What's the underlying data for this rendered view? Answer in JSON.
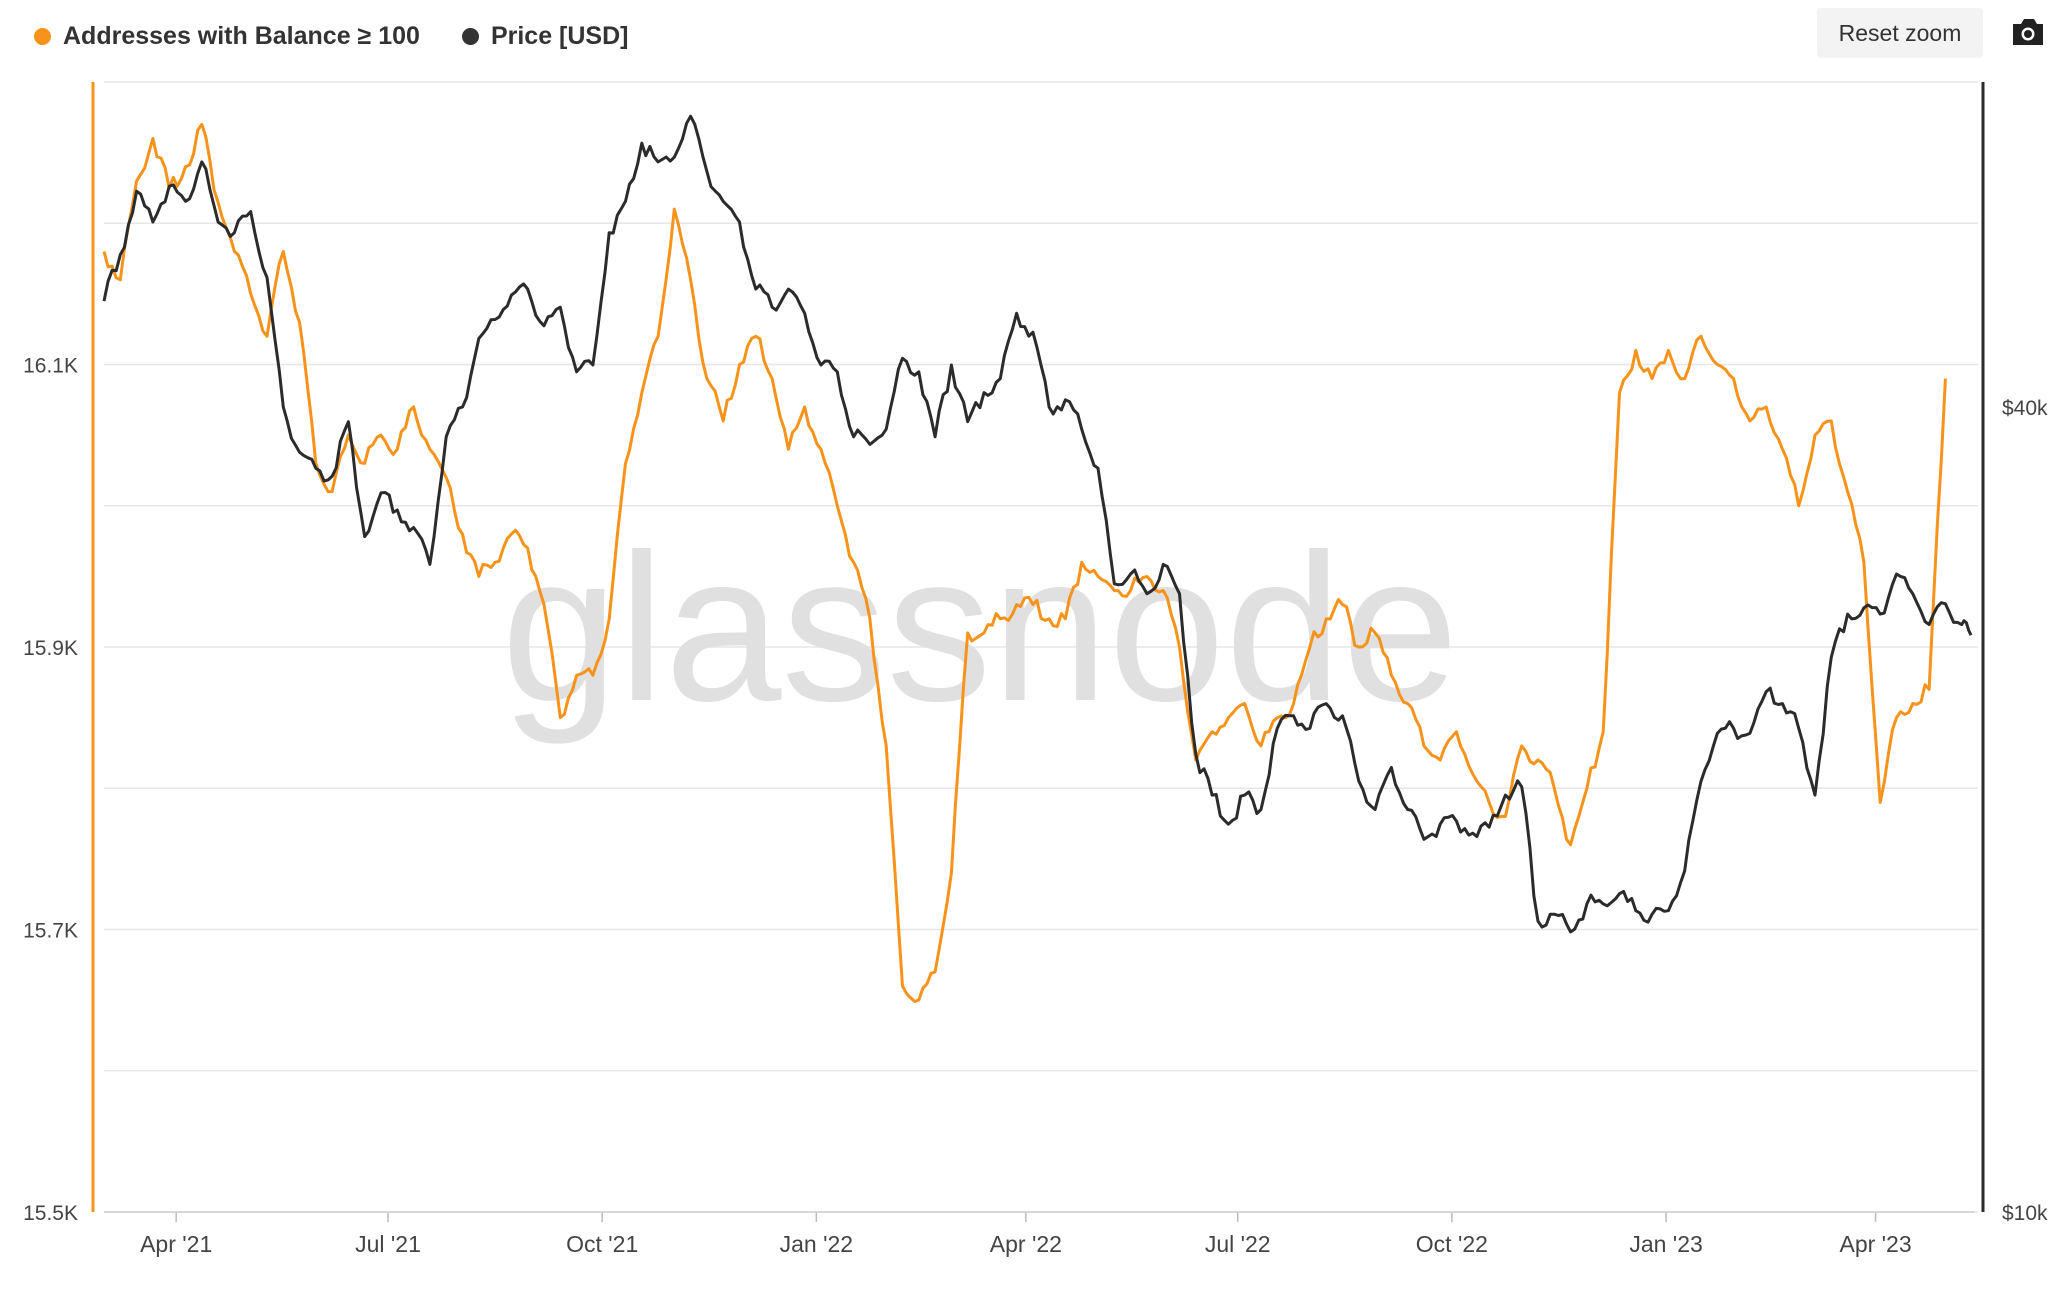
{
  "legend": {
    "series1": "Addresses with Balance ≥ 100",
    "series2": "Price [USD]"
  },
  "toolbar": {
    "reset_zoom": "Reset zoom",
    "camera_icon": "camera-icon"
  },
  "watermark": "glassnode",
  "colors": {
    "addresses": "#f7931a",
    "price": "#2b2b2b",
    "grid": "#e6e6e6",
    "axis_text": "#444444"
  },
  "chart_data": {
    "type": "line",
    "x_ticks": [
      "Apr '21",
      "Jul '21",
      "Oct '21",
      "Jan '22",
      "Apr '22",
      "Jul '22",
      "Oct '22",
      "Jan '23",
      "Apr '23"
    ],
    "y_left_ticks": [
      "16.1K",
      "15.9K",
      "15.7K",
      "15.5K"
    ],
    "y_right_ticks": [
      "$40k",
      "$10k"
    ],
    "y_left_range": [
      15500,
      16300
    ],
    "y_right_scale": "log",
    "y_right_range": [
      10000,
      70000
    ],
    "x_range": [
      "2021-03-01",
      "2023-05-15"
    ],
    "series": [
      {
        "name": "Addresses with Balance ≥ 100",
        "axis": "left",
        "points": [
          [
            "2021-03-01",
            16180
          ],
          [
            "2021-03-08",
            16160
          ],
          [
            "2021-03-15",
            16230
          ],
          [
            "2021-03-22",
            16260
          ],
          [
            "2021-03-29",
            16225
          ],
          [
            "2021-04-05",
            16240
          ],
          [
            "2021-04-12",
            16270
          ],
          [
            "2021-04-19",
            16215
          ],
          [
            "2021-04-26",
            16180
          ],
          [
            "2021-05-03",
            16150
          ],
          [
            "2021-05-10",
            16120
          ],
          [
            "2021-05-17",
            16180
          ],
          [
            "2021-05-24",
            16130
          ],
          [
            "2021-05-31",
            16030
          ],
          [
            "2021-06-07",
            16010
          ],
          [
            "2021-06-14",
            16050
          ],
          [
            "2021-06-21",
            16030
          ],
          [
            "2021-06-28",
            16050
          ],
          [
            "2021-07-05",
            16040
          ],
          [
            "2021-07-12",
            16070
          ],
          [
            "2021-07-19",
            16040
          ],
          [
            "2021-07-26",
            16020
          ],
          [
            "2021-08-02",
            15980
          ],
          [
            "2021-08-09",
            15950
          ],
          [
            "2021-08-16",
            15960
          ],
          [
            "2021-08-23",
            15980
          ],
          [
            "2021-08-30",
            15970
          ],
          [
            "2021-09-06",
            15930
          ],
          [
            "2021-09-13",
            15850
          ],
          [
            "2021-09-20",
            15880
          ],
          [
            "2021-09-27",
            15880
          ],
          [
            "2021-10-04",
            15920
          ],
          [
            "2021-10-11",
            16030
          ],
          [
            "2021-10-18",
            16080
          ],
          [
            "2021-10-25",
            16120
          ],
          [
            "2021-11-01",
            16210
          ],
          [
            "2021-11-08",
            16160
          ],
          [
            "2021-11-15",
            16090
          ],
          [
            "2021-11-22",
            16060
          ],
          [
            "2021-11-29",
            16100
          ],
          [
            "2021-12-06",
            16120
          ],
          [
            "2021-12-13",
            16090
          ],
          [
            "2021-12-20",
            16040
          ],
          [
            "2021-12-27",
            16070
          ],
          [
            "2022-01-03",
            16040
          ],
          [
            "2022-01-10",
            16000
          ],
          [
            "2022-01-17",
            15960
          ],
          [
            "2022-01-24",
            15920
          ],
          [
            "2022-01-31",
            15830
          ],
          [
            "2022-02-07",
            15660
          ],
          [
            "2022-02-14",
            15650
          ],
          [
            "2022-02-21",
            15670
          ],
          [
            "2022-02-28",
            15740
          ],
          [
            "2022-03-07",
            15910
          ],
          [
            "2022-03-14",
            15910
          ],
          [
            "2022-03-21",
            15920
          ],
          [
            "2022-03-28",
            15930
          ],
          [
            "2022-04-04",
            15930
          ],
          [
            "2022-04-11",
            15920
          ],
          [
            "2022-04-18",
            15920
          ],
          [
            "2022-04-25",
            15960
          ],
          [
            "2022-05-02",
            15950
          ],
          [
            "2022-05-09",
            15940
          ],
          [
            "2022-05-16",
            15940
          ],
          [
            "2022-05-23",
            15950
          ],
          [
            "2022-05-30",
            15940
          ],
          [
            "2022-06-06",
            15900
          ],
          [
            "2022-06-13",
            15820
          ],
          [
            "2022-06-20",
            15840
          ],
          [
            "2022-06-27",
            15850
          ],
          [
            "2022-07-04",
            15860
          ],
          [
            "2022-07-11",
            15830
          ],
          [
            "2022-07-18",
            15850
          ],
          [
            "2022-07-25",
            15860
          ],
          [
            "2022-08-01",
            15900
          ],
          [
            "2022-08-08",
            15920
          ],
          [
            "2022-08-15",
            15930
          ],
          [
            "2022-08-22",
            15900
          ],
          [
            "2022-08-29",
            15910
          ],
          [
            "2022-09-05",
            15880
          ],
          [
            "2022-09-12",
            15860
          ],
          [
            "2022-09-19",
            15830
          ],
          [
            "2022-09-26",
            15820
          ],
          [
            "2022-10-03",
            15840
          ],
          [
            "2022-10-10",
            15810
          ],
          [
            "2022-10-17",
            15790
          ],
          [
            "2022-10-24",
            15780
          ],
          [
            "2022-10-31",
            15830
          ],
          [
            "2022-11-07",
            15820
          ],
          [
            "2022-11-14",
            15800
          ],
          [
            "2022-11-21",
            15760
          ],
          [
            "2022-11-28",
            15800
          ],
          [
            "2022-12-05",
            15840
          ],
          [
            "2022-12-12",
            16080
          ],
          [
            "2022-12-19",
            16110
          ],
          [
            "2022-12-26",
            16090
          ],
          [
            "2023-01-02",
            16110
          ],
          [
            "2023-01-09",
            16090
          ],
          [
            "2023-01-16",
            16120
          ],
          [
            "2023-01-23",
            16100
          ],
          [
            "2023-01-30",
            16090
          ],
          [
            "2023-02-06",
            16060
          ],
          [
            "2023-02-13",
            16070
          ],
          [
            "2023-02-20",
            16040
          ],
          [
            "2023-02-27",
            16000
          ],
          [
            "2023-03-06",
            16050
          ],
          [
            "2023-03-13",
            16060
          ],
          [
            "2023-03-20",
            16010
          ],
          [
            "2023-03-27",
            15960
          ],
          [
            "2023-04-03",
            15790
          ],
          [
            "2023-04-10",
            15850
          ],
          [
            "2023-04-17",
            15860
          ],
          [
            "2023-04-24",
            15870
          ],
          [
            "2023-05-01",
            16090
          ]
        ]
      },
      {
        "name": "Price [USD]",
        "axis": "right",
        "points": [
          [
            "2021-03-01",
            48000
          ],
          [
            "2021-03-08",
            52000
          ],
          [
            "2021-03-15",
            58000
          ],
          [
            "2021-03-22",
            55000
          ],
          [
            "2021-03-29",
            58500
          ],
          [
            "2021-04-05",
            57000
          ],
          [
            "2021-04-12",
            61000
          ],
          [
            "2021-04-19",
            55000
          ],
          [
            "2021-04-26",
            54000
          ],
          [
            "2021-05-03",
            56000
          ],
          [
            "2021-05-10",
            50000
          ],
          [
            "2021-05-17",
            40000
          ],
          [
            "2021-05-24",
            37000
          ],
          [
            "2021-05-31",
            36000
          ],
          [
            "2021-06-07",
            35500
          ],
          [
            "2021-06-14",
            39000
          ],
          [
            "2021-06-21",
            32000
          ],
          [
            "2021-06-28",
            34500
          ],
          [
            "2021-07-05",
            33500
          ],
          [
            "2021-07-12",
            32500
          ],
          [
            "2021-07-19",
            30500
          ],
          [
            "2021-07-26",
            38000
          ],
          [
            "2021-08-02",
            40000
          ],
          [
            "2021-08-09",
            45000
          ],
          [
            "2021-08-16",
            46500
          ],
          [
            "2021-08-23",
            48500
          ],
          [
            "2021-08-30",
            49000
          ],
          [
            "2021-09-06",
            46000
          ],
          [
            "2021-09-13",
            47500
          ],
          [
            "2021-09-20",
            42500
          ],
          [
            "2021-09-27",
            43000
          ],
          [
            "2021-10-04",
            54000
          ],
          [
            "2021-10-11",
            57000
          ],
          [
            "2021-10-18",
            63000
          ],
          [
            "2021-10-25",
            61000
          ],
          [
            "2021-11-01",
            61500
          ],
          [
            "2021-11-08",
            66000
          ],
          [
            "2021-11-15",
            60000
          ],
          [
            "2021-11-22",
            57000
          ],
          [
            "2021-11-29",
            55000
          ],
          [
            "2021-12-06",
            49000
          ],
          [
            "2021-12-13",
            47500
          ],
          [
            "2021-12-20",
            49000
          ],
          [
            "2021-12-27",
            47000
          ],
          [
            "2022-01-03",
            43000
          ],
          [
            "2022-01-10",
            42500
          ],
          [
            "2022-01-17",
            38000
          ],
          [
            "2022-01-24",
            37500
          ],
          [
            "2022-01-31",
            38500
          ],
          [
            "2022-02-07",
            43500
          ],
          [
            "2022-02-14",
            42500
          ],
          [
            "2022-02-21",
            38000
          ],
          [
            "2022-02-28",
            43000
          ],
          [
            "2022-03-07",
            39000
          ],
          [
            "2022-03-14",
            41000
          ],
          [
            "2022-03-21",
            42000
          ],
          [
            "2022-03-28",
            47000
          ],
          [
            "2022-04-04",
            45500
          ],
          [
            "2022-04-11",
            40000
          ],
          [
            "2022-04-18",
            40500
          ],
          [
            "2022-04-25",
            38500
          ],
          [
            "2022-05-02",
            36000
          ],
          [
            "2022-05-09",
            29500
          ],
          [
            "2022-05-16",
            30000
          ],
          [
            "2022-05-23",
            29000
          ],
          [
            "2022-05-30",
            30500
          ],
          [
            "2022-06-06",
            29000
          ],
          [
            "2022-06-13",
            22000
          ],
          [
            "2022-06-20",
            20500
          ],
          [
            "2022-06-27",
            19500
          ],
          [
            "2022-07-04",
            20500
          ],
          [
            "2022-07-11",
            20000
          ],
          [
            "2022-07-18",
            23000
          ],
          [
            "2022-07-25",
            23500
          ],
          [
            "2022-08-01",
            23000
          ],
          [
            "2022-08-08",
            24000
          ],
          [
            "2022-08-15",
            23500
          ],
          [
            "2022-08-22",
            21000
          ],
          [
            "2022-08-29",
            20000
          ],
          [
            "2022-09-05",
            21500
          ],
          [
            "2022-09-12",
            20000
          ],
          [
            "2022-09-19",
            19000
          ],
          [
            "2022-09-26",
            19500
          ],
          [
            "2022-10-03",
            19600
          ],
          [
            "2022-10-10",
            19200
          ],
          [
            "2022-10-17",
            19400
          ],
          [
            "2022-10-24",
            20500
          ],
          [
            "2022-10-31",
            20800
          ],
          [
            "2022-11-07",
            16500
          ],
          [
            "2022-11-14",
            16700
          ],
          [
            "2022-11-21",
            16200
          ],
          [
            "2022-11-28",
            17000
          ],
          [
            "2022-12-05",
            17000
          ],
          [
            "2022-12-12",
            17300
          ],
          [
            "2022-12-19",
            16800
          ],
          [
            "2022-12-26",
            16700
          ],
          [
            "2023-01-02",
            16800
          ],
          [
            "2023-01-09",
            18000
          ],
          [
            "2023-01-16",
            21000
          ],
          [
            "2023-01-23",
            22800
          ],
          [
            "2023-01-30",
            23000
          ],
          [
            "2023-02-06",
            22800
          ],
          [
            "2023-02-13",
            24500
          ],
          [
            "2023-02-20",
            24000
          ],
          [
            "2023-02-27",
            23000
          ],
          [
            "2023-03-06",
            20500
          ],
          [
            "2023-03-13",
            26000
          ],
          [
            "2023-03-20",
            28000
          ],
          [
            "2023-03-27",
            28300
          ],
          [
            "2023-04-03",
            28000
          ],
          [
            "2023-04-10",
            30000
          ],
          [
            "2023-04-17",
            29000
          ],
          [
            "2023-04-24",
            27500
          ],
          [
            "2023-05-01",
            28500
          ],
          [
            "2023-05-08",
            27500
          ],
          [
            "2023-05-12",
            27000
          ]
        ]
      }
    ]
  }
}
